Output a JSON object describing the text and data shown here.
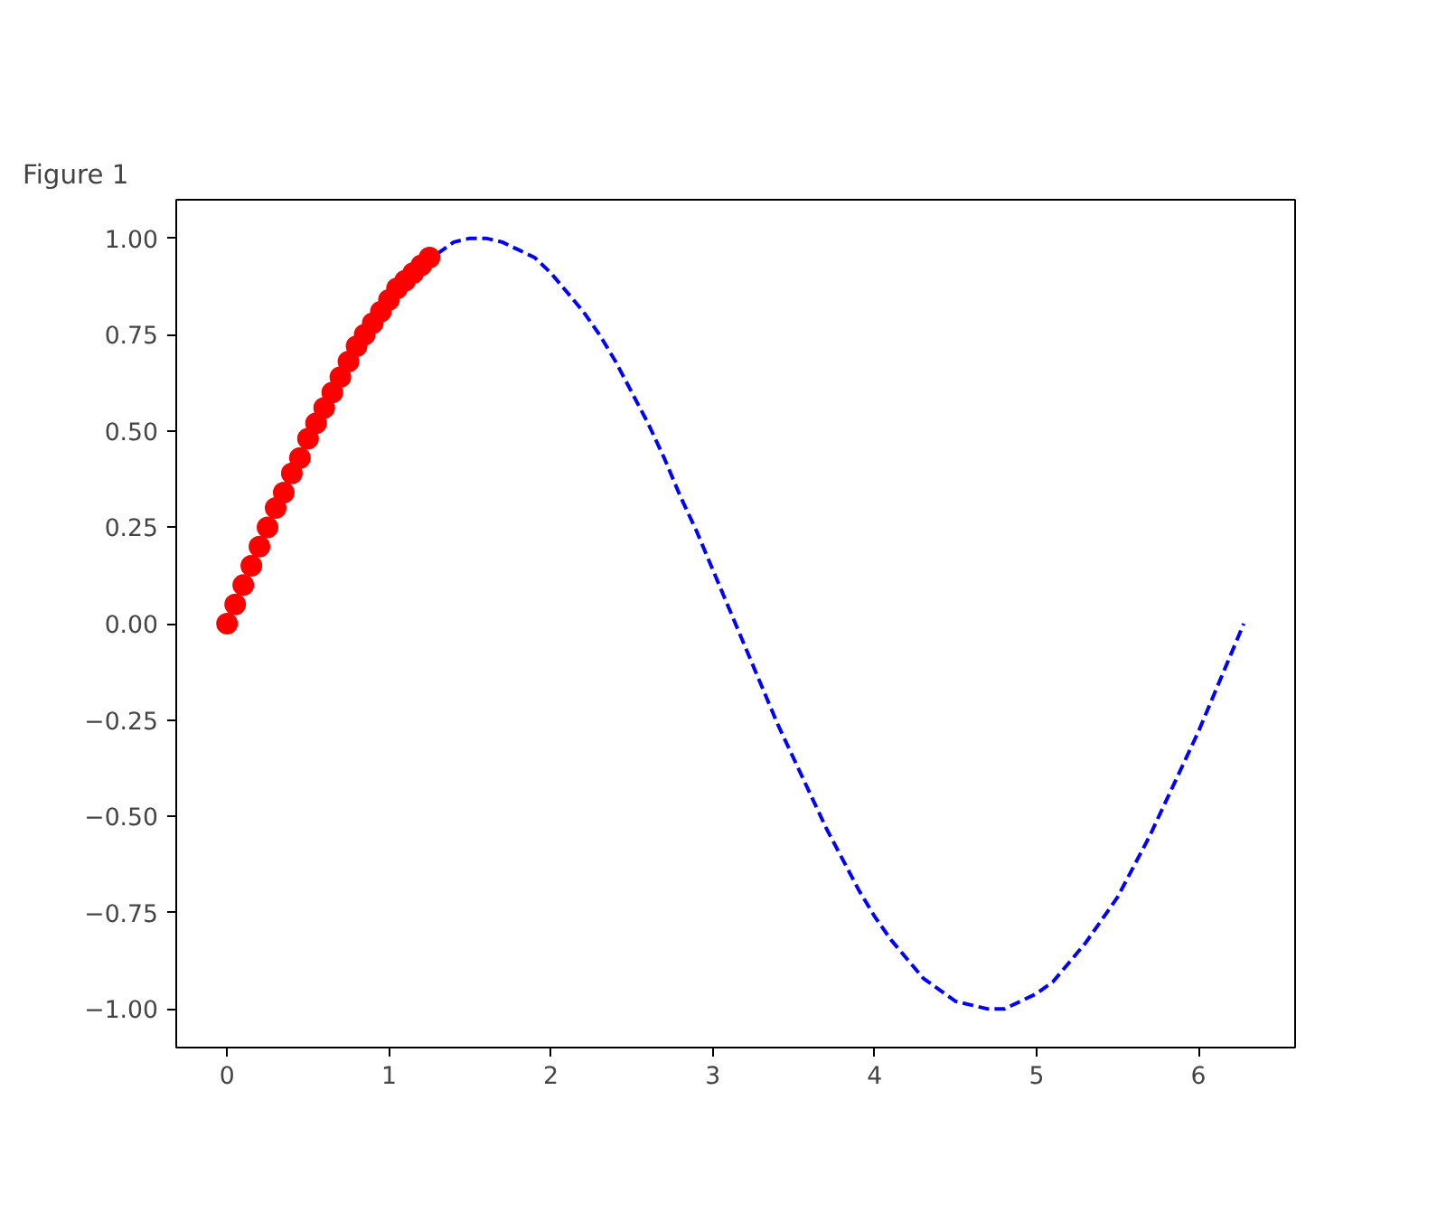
{
  "chart_data": {
    "type": "line",
    "title": "Figure 1",
    "xlim": [
      -0.314,
      6.597
    ],
    "ylim": [
      -1.1,
      1.1
    ],
    "xticks": [
      0,
      1,
      2,
      3,
      4,
      5,
      6
    ],
    "yticks": [
      {
        "value": -1,
        "label": "−1.00"
      },
      {
        "value": -0.75,
        "label": "−0.75"
      },
      {
        "value": -0.5,
        "label": "−0.50"
      },
      {
        "value": -0.25,
        "label": "−0.25"
      },
      {
        "value": 0,
        "label": "0.00"
      },
      {
        "value": 0.25,
        "label": "0.25"
      },
      {
        "value": 0.5,
        "label": "0.50"
      },
      {
        "value": 0.75,
        "label": "0.75"
      },
      {
        "value": 1,
        "label": "1.00"
      }
    ],
    "grid": false,
    "series": [
      {
        "color": "#0000ff",
        "line_style": "dashed",
        "x": [
          1.3,
          1.4,
          1.5,
          1.6,
          1.7,
          1.8,
          1.9,
          2.0,
          2.1,
          2.2,
          2.3,
          2.4,
          2.5,
          2.6,
          2.7,
          2.8,
          2.9,
          3.0,
          3.1,
          3.2,
          3.3,
          3.4,
          3.5,
          3.6,
          3.7,
          3.8,
          3.9,
          4.0,
          4.1,
          4.2,
          4.3,
          4.4,
          4.5,
          4.6,
          4.7,
          4.8,
          4.9,
          5.0,
          5.1,
          5.2,
          5.3,
          5.4,
          5.5,
          5.6,
          5.7,
          5.8,
          5.9,
          6.0,
          6.1,
          6.2,
          6.28
        ],
        "values": [
          0.96,
          0.99,
          1.0,
          1.0,
          0.99,
          0.97,
          0.95,
          0.91,
          0.86,
          0.81,
          0.75,
          0.68,
          0.6,
          0.52,
          0.43,
          0.33,
          0.24,
          0.14,
          0.04,
          -0.06,
          -0.16,
          -0.26,
          -0.35,
          -0.44,
          -0.53,
          -0.61,
          -0.69,
          -0.76,
          -0.82,
          -0.87,
          -0.92,
          -0.95,
          -0.98,
          -0.99,
          -1.0,
          -1.0,
          -0.98,
          -0.96,
          -0.93,
          -0.88,
          -0.83,
          -0.77,
          -0.71,
          -0.63,
          -0.55,
          -0.46,
          -0.37,
          -0.28,
          -0.18,
          -0.08,
          0
        ]
      },
      {
        "type": "scatter",
        "color": "#ff0000",
        "marker": "circle",
        "x": [
          0,
          0.05,
          0.1,
          0.15,
          0.2,
          0.25,
          0.3,
          0.35,
          0.4,
          0.45,
          0.5,
          0.55,
          0.6,
          0.65,
          0.7,
          0.75,
          0.8,
          0.85,
          0.9,
          0.95,
          1.0,
          1.05,
          1.1,
          1.15,
          1.2,
          1.25
        ],
        "values": [
          0,
          0.05,
          0.1,
          0.15,
          0.2,
          0.25,
          0.3,
          0.34,
          0.39,
          0.43,
          0.48,
          0.52,
          0.56,
          0.6,
          0.64,
          0.68,
          0.72,
          0.75,
          0.78,
          0.81,
          0.84,
          0.87,
          0.89,
          0.91,
          0.93,
          0.95
        ]
      }
    ]
  }
}
